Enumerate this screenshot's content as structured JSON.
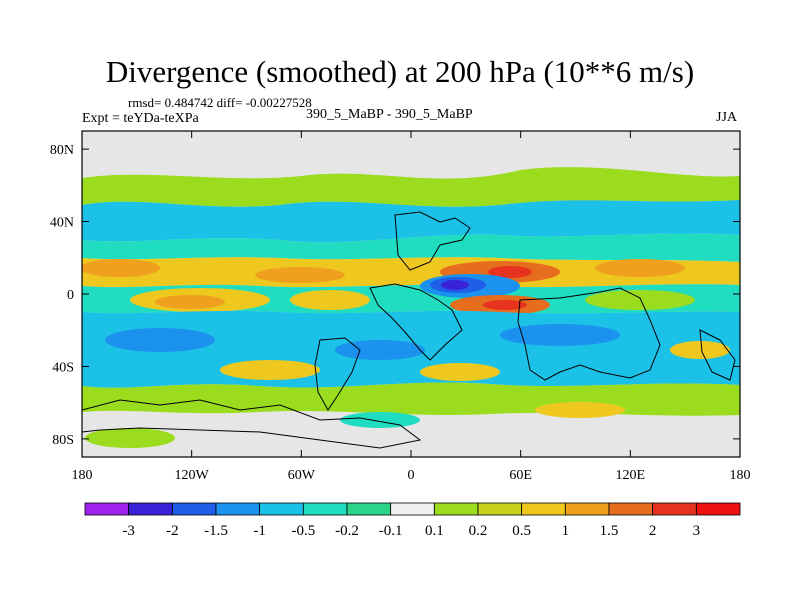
{
  "chart_data": {
    "type": "contour-map",
    "title": "Divergence (smoothed) at 200 hPa (10**6 m/s)",
    "left_string": "Expt = teYDa-teXPa",
    "center_string": "390_5_MaBP - 390_5_MaBP",
    "right_string": "JJA",
    "stats_string": "rmsd= 0.484742 diff= -0.00227528",
    "x_ticks": [
      {
        "value": -180,
        "label": "180"
      },
      {
        "value": -120,
        "label": "120W"
      },
      {
        "value": -60,
        "label": "60W"
      },
      {
        "value": 0,
        "label": "0"
      },
      {
        "value": 60,
        "label": "60E"
      },
      {
        "value": 120,
        "label": "120E"
      },
      {
        "value": 180,
        "label": "180"
      }
    ],
    "y_ticks": [
      {
        "value": 80,
        "label": "80N"
      },
      {
        "value": 40,
        "label": "40N"
      },
      {
        "value": 0,
        "label": "0"
      },
      {
        "value": -40,
        "label": "40S"
      },
      {
        "value": -80,
        "label": "80S"
      }
    ],
    "xlim": [
      -180,
      180
    ],
    "ylim": [
      -90,
      90
    ],
    "colorbar": {
      "labels": [
        "-3",
        "-2",
        "-1.5",
        "-1",
        "-0.5",
        "-0.2",
        "-0.1",
        "0.1",
        "0.2",
        "0.5",
        "1",
        "1.5",
        "2",
        "3"
      ],
      "colors": [
        "#a020f0",
        "#3a22d6",
        "#1e5ee8",
        "#1a92ee",
        "#1bc1e6",
        "#20dcc0",
        "#2cd48a",
        "#f0f0f0",
        "#9bdc1e",
        "#c8d21e",
        "#eec81e",
        "#eea01e",
        "#e66c1e",
        "#e6321e",
        "#ee1212"
      ]
    },
    "features": [
      {
        "name": "nh-midlat-positive-belt",
        "lon": [
          -170,
          170
        ],
        "lat": [
          15,
          25
        ],
        "sign": "positive",
        "max": 1.5
      },
      {
        "name": "equatorial-negative-core",
        "lon": 25,
        "lat": 3,
        "sign": "negative",
        "min": -3
      },
      {
        "name": "equatorial-positive-core",
        "lon": 45,
        "lat": -3,
        "sign": "positive",
        "max": 2
      },
      {
        "name": "sh-midlat-negative-belt",
        "lon": [
          -170,
          170
        ],
        "lat": [
          -30,
          -45
        ],
        "sign": "negative",
        "min": -1
      },
      {
        "name": "polar-weak",
        "lat": [
          60,
          90
        ],
        "sign": "near-zero"
      }
    ]
  }
}
